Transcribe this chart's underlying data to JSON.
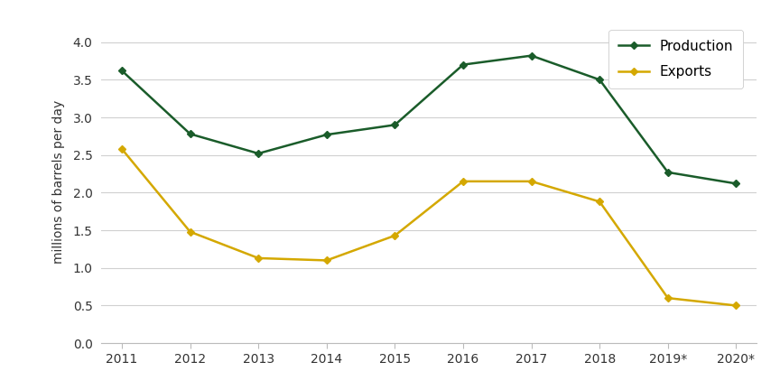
{
  "years": [
    "2011",
    "2012",
    "2013",
    "2014",
    "2015",
    "2016",
    "2017",
    "2018",
    "2019*",
    "2020*"
  ],
  "production": [
    3.62,
    2.78,
    2.52,
    2.77,
    2.9,
    3.7,
    3.82,
    3.5,
    2.27,
    2.12
  ],
  "exports": [
    2.58,
    1.48,
    1.13,
    1.1,
    1.43,
    2.15,
    2.15,
    1.88,
    0.6,
    0.5
  ],
  "production_color": "#1a5c2a",
  "exports_color": "#d4a800",
  "ylabel": "millions of barrels per day",
  "ylim": [
    0,
    4.3
  ],
  "yticks": [
    0.0,
    0.5,
    1.0,
    1.5,
    2.0,
    2.5,
    3.0,
    3.5,
    4.0
  ],
  "ytick_labels": [
    "0.0",
    "0.5",
    "1.0",
    "1.5",
    "2.0",
    "2.5",
    "3.0",
    "3.5",
    "4.0"
  ],
  "legend_production": "Production",
  "legend_exports": "Exports",
  "background_color": "#ffffff",
  "grid_color": "#d0d0d0",
  "marker": "D",
  "marker_size": 4,
  "line_width": 1.8,
  "tick_fontsize": 10,
  "ylabel_fontsize": 10,
  "legend_fontsize": 11
}
